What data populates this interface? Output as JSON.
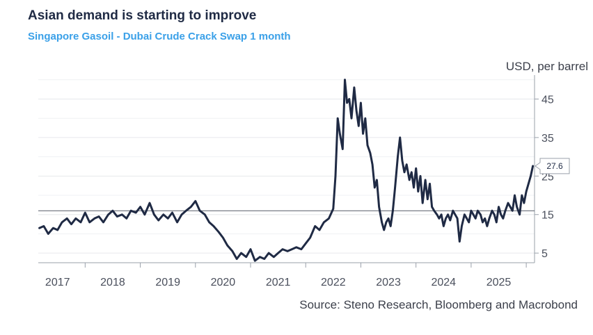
{
  "chart_data": {
    "type": "line",
    "title": "Asian demand is starting to improve",
    "subtitle": "Singapore Gasoil - Dubai Crude Crack Swap 1 month",
    "ylabel": "USD, per barrel",
    "source": "Source: Steno Research, Bloomberg and Macrobond",
    "xlim": [
      2016.65,
      2025.65
    ],
    "ylim": [
      2.5,
      50.5
    ],
    "y_ticks": [
      5,
      15,
      25,
      35,
      45
    ],
    "x_ticks": [
      {
        "label": "2017",
        "year": 2017
      },
      {
        "label": "2018",
        "year": 2018
      },
      {
        "label": "2019",
        "year": 2019
      },
      {
        "label": "2020",
        "year": 2020
      },
      {
        "label": "2021",
        "year": 2021
      },
      {
        "label": "2022",
        "year": 2022
      },
      {
        "label": "2023",
        "year": 2023
      },
      {
        "label": "2024",
        "year": 2024
      },
      {
        "label": "2025",
        "year": 2025
      }
    ],
    "reference_line": 16.0,
    "last_value_label": "27.6",
    "series": [
      {
        "name": "Singapore Gasoil - Dubai Crude Crack Swap 1 month",
        "color": "#1f2a44",
        "x": [
          2016.67,
          2016.75,
          2016.83,
          2016.92,
          2017.0,
          2017.08,
          2017.17,
          2017.25,
          2017.33,
          2017.42,
          2017.5,
          2017.58,
          2017.67,
          2017.75,
          2017.83,
          2017.92,
          2018.0,
          2018.08,
          2018.17,
          2018.25,
          2018.33,
          2018.42,
          2018.5,
          2018.58,
          2018.67,
          2018.75,
          2018.83,
          2018.92,
          2019.0,
          2019.08,
          2019.17,
          2019.25,
          2019.33,
          2019.42,
          2019.5,
          2019.58,
          2019.67,
          2019.75,
          2019.83,
          2019.92,
          2020.0,
          2020.08,
          2020.17,
          2020.25,
          2020.33,
          2020.42,
          2020.5,
          2020.58,
          2020.67,
          2020.75,
          2020.83,
          2020.92,
          2021.0,
          2021.08,
          2021.17,
          2021.25,
          2021.33,
          2021.42,
          2021.5,
          2021.58,
          2021.67,
          2021.75,
          2021.83,
          2021.92,
          2022.0,
          2022.04,
          2022.08,
          2022.12,
          2022.17,
          2022.21,
          2022.25,
          2022.29,
          2022.33,
          2022.38,
          2022.42,
          2022.46,
          2022.5,
          2022.54,
          2022.58,
          2022.62,
          2022.67,
          2022.71,
          2022.75,
          2022.79,
          2022.83,
          2022.88,
          2022.92,
          2022.96,
          2023.0,
          2023.04,
          2023.08,
          2023.12,
          2023.17,
          2023.21,
          2023.25,
          2023.29,
          2023.33,
          2023.38,
          2023.42,
          2023.46,
          2023.5,
          2023.54,
          2023.58,
          2023.62,
          2023.67,
          2023.71,
          2023.75,
          2023.79,
          2023.83,
          2023.88,
          2023.92,
          2023.96,
          2024.0,
          2024.04,
          2024.08,
          2024.12,
          2024.17,
          2024.21,
          2024.25,
          2024.29,
          2024.33,
          2024.38,
          2024.42,
          2024.46,
          2024.5,
          2024.54,
          2024.58,
          2024.62,
          2024.67,
          2024.71,
          2024.75,
          2024.79,
          2024.83,
          2024.88,
          2024.92,
          2024.96,
          2025.0,
          2025.04,
          2025.08,
          2025.12,
          2025.17,
          2025.21,
          2025.25,
          2025.29,
          2025.33,
          2025.38,
          2025.42,
          2025.46,
          2025.5,
          2025.54,
          2025.58,
          2025.62
        ],
        "values": [
          11.5,
          12,
          10,
          11.5,
          11,
          13,
          14,
          12.5,
          14,
          13,
          15.5,
          13,
          14,
          14.5,
          13,
          15,
          16,
          14.5,
          15,
          14,
          16,
          15.5,
          17,
          15,
          18,
          15,
          13.5,
          15,
          14,
          15.5,
          13,
          15,
          16,
          17,
          18.5,
          16,
          15,
          13,
          12,
          10.5,
          9,
          7,
          5.5,
          3.5,
          5,
          4,
          6,
          3,
          4,
          3.5,
          5,
          4,
          5,
          6,
          5.5,
          6,
          6.5,
          6,
          7.5,
          9,
          12,
          11,
          13,
          14,
          16.5,
          25,
          40,
          36,
          32,
          50,
          44,
          45,
          40,
          48,
          42,
          38,
          44,
          36,
          40,
          33,
          31,
          28,
          22,
          24,
          17,
          13,
          11,
          13,
          14,
          12,
          16,
          22,
          30,
          35,
          29,
          26,
          28,
          24,
          26,
          22,
          27,
          21,
          25,
          18,
          24,
          19,
          23,
          17,
          16,
          15,
          14,
          15,
          12,
          14,
          15,
          13.5,
          16,
          15,
          14,
          8,
          12,
          15,
          14,
          13,
          16,
          15,
          14,
          16,
          15,
          13,
          14,
          12,
          14,
          16,
          15,
          13,
          17,
          15,
          14,
          16,
          18,
          17,
          16,
          20,
          17,
          15,
          20,
          18,
          21,
          23,
          25,
          27.6
        ]
      }
    ]
  }
}
